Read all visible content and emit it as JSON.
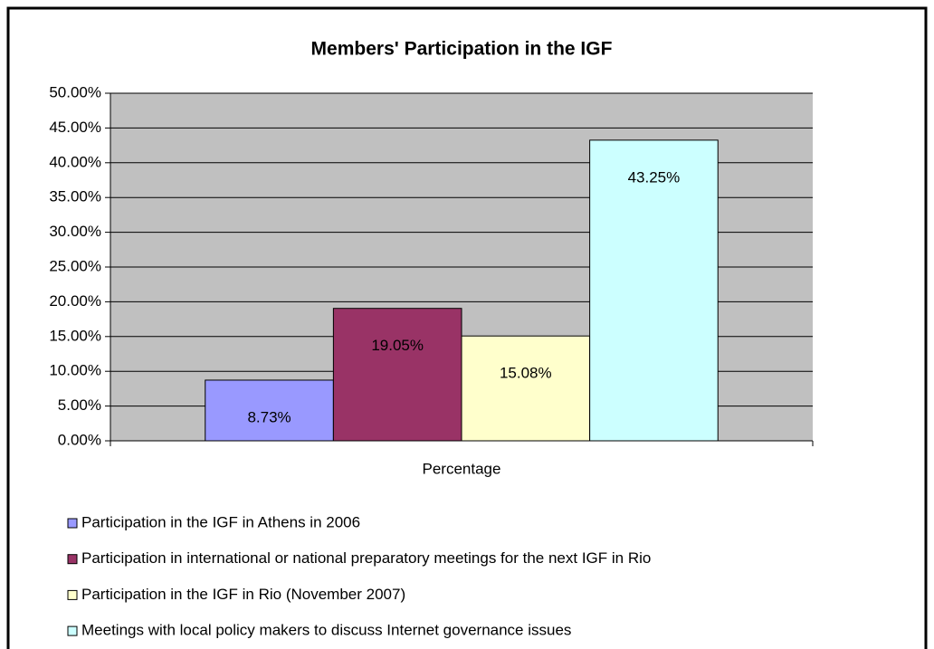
{
  "chart_data": {
    "type": "bar",
    "title": "Members' Participation in the IGF",
    "categories": [
      "Percentage"
    ],
    "series": [
      {
        "name": "Participation in the IGF in Athens in 2006",
        "color": "#9999ff",
        "values": [
          8.73
        ],
        "value_labels": [
          "8.73%"
        ]
      },
      {
        "name": "Participation in international or national preparatory meetings for the next IGF in Rio",
        "color": "#993366",
        "values": [
          19.05
        ],
        "value_labels": [
          "19.05%"
        ]
      },
      {
        "name": "Participation in the IGF in Rio (November 2007)",
        "color": "#ffffcc",
        "values": [
          15.08
        ],
        "value_labels": [
          "15.08%"
        ]
      },
      {
        "name": "Meetings with local policy makers to discuss Internet governance issues",
        "color": "#ccffff",
        "values": [
          43.25
        ],
        "value_labels": [
          "43.25%"
        ]
      }
    ],
    "ylim": [
      0,
      50
    ],
    "yticks": [
      {
        "value": 0,
        "label": "0.00%"
      },
      {
        "value": 5,
        "label": "5.00%"
      },
      {
        "value": 10,
        "label": "10.00%"
      },
      {
        "value": 15,
        "label": "15.00%"
      },
      {
        "value": 20,
        "label": "20.00%"
      },
      {
        "value": 25,
        "label": "25.00%"
      },
      {
        "value": 30,
        "label": "30.00%"
      },
      {
        "value": 35,
        "label": "35.00%"
      },
      {
        "value": 40,
        "label": "40.00%"
      },
      {
        "value": 45,
        "label": "45.00%"
      },
      {
        "value": 50,
        "label": "50.00%"
      }
    ],
    "grid": true,
    "plot_background": "#c0c0c0",
    "legend": "bottom"
  }
}
